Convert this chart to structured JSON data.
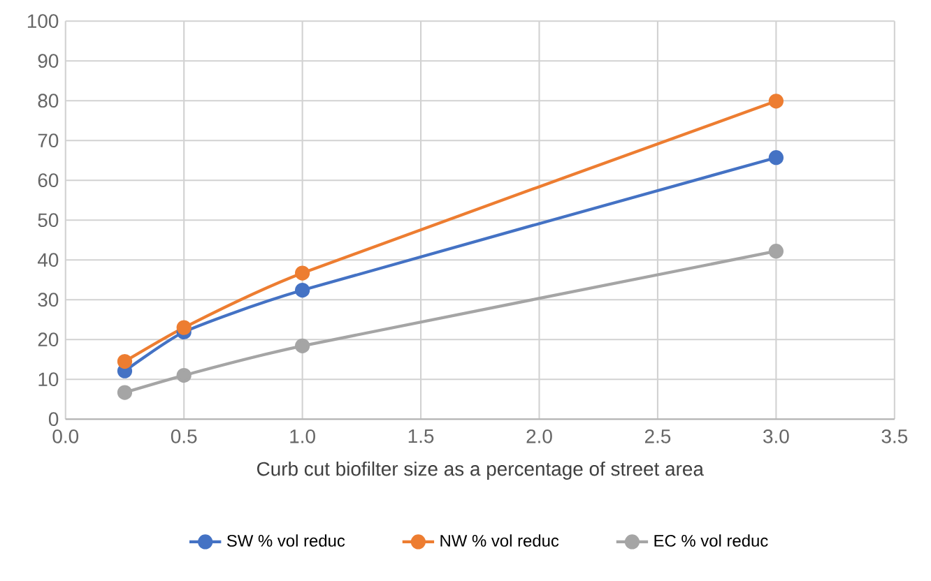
{
  "chart_data": {
    "type": "line",
    "xlabel": "Curb cut biofilter size as a percentage of street area",
    "x": [
      0.25,
      0.5,
      1,
      3
    ],
    "series": [
      {
        "name": "SW % vol reduc",
        "color": "#4472c4",
        "values": [
          12.1,
          21.9,
          32.4,
          65.7
        ]
      },
      {
        "name": "NW % vol reduc",
        "color": "#ed7d31",
        "values": [
          14.5,
          23.0,
          36.7,
          79.9
        ]
      },
      {
        "name": "EC % vol reduc",
        "color": "#a5a5a5",
        "values": [
          6.7,
          11.0,
          18.4,
          42.2
        ]
      }
    ],
    "xlim": [
      0,
      3.5
    ],
    "xticks": [
      {
        "value": 0,
        "label": "0.0"
      },
      {
        "value": 0.5,
        "label": "0.5"
      },
      {
        "value": 1,
        "label": "1.0"
      },
      {
        "value": 1.5,
        "label": "1.5"
      },
      {
        "value": 2,
        "label": "2.0"
      },
      {
        "value": 2.5,
        "label": "2.5"
      },
      {
        "value": 3,
        "label": "3.0"
      },
      {
        "value": 3.5,
        "label": "3.5"
      }
    ],
    "ylim": [
      0,
      100
    ],
    "yticks": [
      0,
      10,
      20,
      30,
      40,
      50,
      60,
      70,
      80,
      90,
      100
    ],
    "grid": true,
    "legend": "bottom",
    "marker": "circle",
    "line_style": "solid"
  }
}
